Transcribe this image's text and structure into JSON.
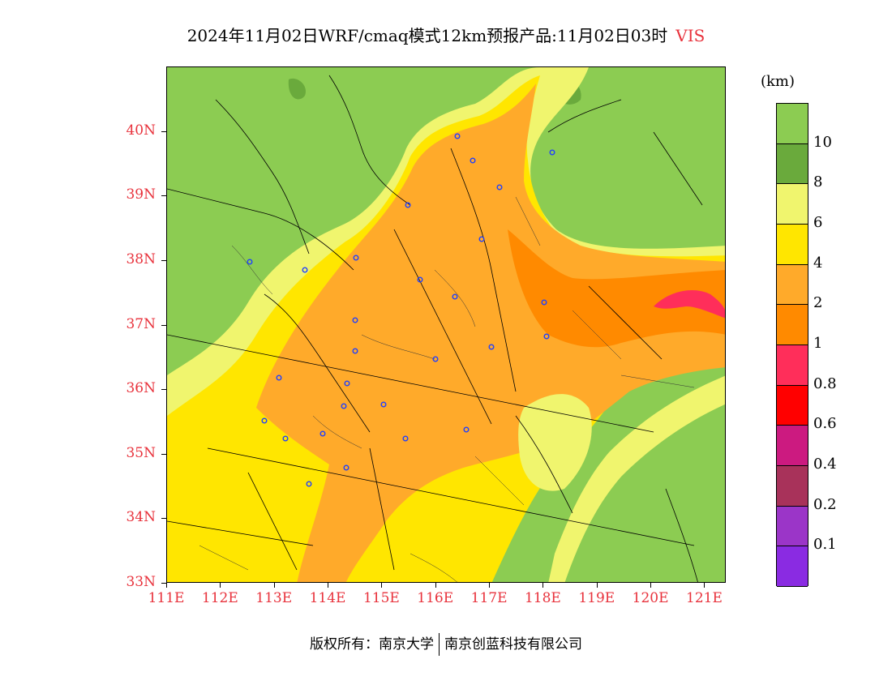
{
  "title": {
    "text": "2024年11月02日WRF/cmaq模式12km预报产品:11月02日03时",
    "variable": "VIS"
  },
  "map": {
    "lat_labels": [
      "40N",
      "39N",
      "38N",
      "37N",
      "36N",
      "35N",
      "34N",
      "33N"
    ],
    "lon_labels": [
      "111E",
      "112E",
      "113E",
      "114E",
      "115E",
      "116E",
      "117E",
      "118E",
      "119E",
      "120E",
      "121E"
    ],
    "lat_range": [
      33,
      41
    ],
    "lon_range": [
      111,
      121.4
    ],
    "label_color": "#e8323c",
    "city_marker_color": "#2040ff"
  },
  "legend": {
    "unit": "(km)",
    "levels": [
      {
        "label": "10",
        "color": "#8ccc52"
      },
      {
        "label": "8",
        "color": "#6aaa3c"
      },
      {
        "label": "6",
        "color": "#f0f56e"
      },
      {
        "label": "4",
        "color": "#ffe600"
      },
      {
        "label": "2",
        "color": "#ffaa2a"
      },
      {
        "label": "1",
        "color": "#ff8a00"
      },
      {
        "label": "0.8",
        "color": "#ff2e5a"
      },
      {
        "label": "0.6",
        "color": "#ff0000"
      },
      {
        "label": "0.4",
        "color": "#cc1a80"
      },
      {
        "label": "0.2",
        "color": "#a8325a"
      },
      {
        "label": "0.1",
        "color": "#9b35c8"
      },
      {
        "label": "",
        "color": "#8a2be2"
      }
    ]
  },
  "footer": {
    "copyright": "版权所有：南京大学",
    "company": "南京创蓝科技有限公司"
  }
}
